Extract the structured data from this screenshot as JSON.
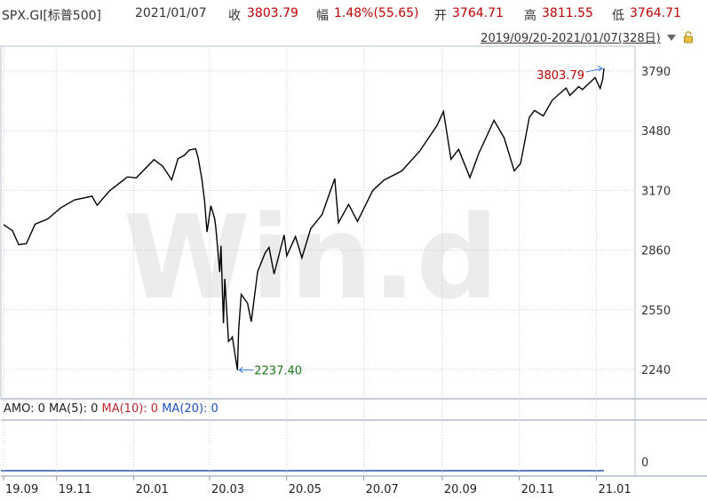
{
  "header": {
    "symbol": "SPX.GI[标普500]",
    "date": "2021/01/07",
    "close_label": "收",
    "close_value": "3803.79",
    "change_label": "幅",
    "change_value": "1.48%(55.65)",
    "open_label": "开",
    "open_value": "3764.71",
    "high_label": "高",
    "high_value": "3811.55",
    "low_label": "低",
    "low_value": "3764.71"
  },
  "range": {
    "text": "2019/09/20-2021/01/07(328日)",
    "dropdown_icon": "triangle-down-icon",
    "lock_icon": "lock-icon"
  },
  "watermark": "Win.d",
  "amo": {
    "amo_label": "AMO: 0",
    "ma5_label": "MA(5): 0",
    "ma10_label": "MA(10): 0",
    "ma20_label": "MA(20): 0",
    "colors": {
      "amo": "#222222",
      "ma5": "#222222",
      "ma10": "#c0282e",
      "ma20": "#1f4fbf"
    },
    "y_tick": "0"
  },
  "chart_data": {
    "type": "line",
    "title": "",
    "xlabel": "",
    "ylabel": "",
    "x_ticks": [
      "19.09",
      "19.11",
      "20.01",
      "20.03",
      "20.05",
      "20.07",
      "20.09",
      "20.11",
      "21.01"
    ],
    "y_ticks": [
      2240,
      2550,
      2860,
      3170,
      3480,
      3790
    ],
    "y_tick_labels": [
      "2240",
      "2550",
      "2860",
      "3170",
      "3480",
      "3790"
    ],
    "ylim": [
      2100,
      3950
    ],
    "grid": true,
    "annotations": [
      {
        "text": "3803.79",
        "x": "2021-01-07",
        "y": 3803.79,
        "color": "#c00000"
      },
      {
        "text": "2237.40",
        "x": "2020-03-23",
        "y": 2237.4,
        "color": "#1a7a1a"
      }
    ],
    "series": [
      {
        "color": "#000000",
        "points": [
          [
            "2019-09-20",
            2992
          ],
          [
            "2019-09-27",
            2961
          ],
          [
            "2019-10-02",
            2888
          ],
          [
            "2019-10-08",
            2893
          ],
          [
            "2019-10-15",
            2995
          ],
          [
            "2019-10-25",
            3022
          ],
          [
            "2019-11-04",
            3078
          ],
          [
            "2019-11-15",
            3120
          ],
          [
            "2019-11-29",
            3140
          ],
          [
            "2019-12-03",
            3093
          ],
          [
            "2019-12-13",
            3168
          ],
          [
            "2019-12-27",
            3240
          ],
          [
            "2020-01-03",
            3235
          ],
          [
            "2020-01-17",
            3330
          ],
          [
            "2020-01-24",
            3295
          ],
          [
            "2020-01-31",
            3225
          ],
          [
            "2020-02-05",
            3334
          ],
          [
            "2020-02-10",
            3352
          ],
          [
            "2020-02-14",
            3380
          ],
          [
            "2020-02-19",
            3386
          ],
          [
            "2020-02-21",
            3337
          ],
          [
            "2020-02-24",
            3225
          ],
          [
            "2020-02-26",
            3116
          ],
          [
            "2020-02-28",
            2954
          ],
          [
            "2020-03-02",
            3090
          ],
          [
            "2020-03-05",
            3023
          ],
          [
            "2020-03-06",
            2972
          ],
          [
            "2020-03-09",
            2746
          ],
          [
            "2020-03-10",
            2882
          ],
          [
            "2020-03-12",
            2480
          ],
          [
            "2020-03-13",
            2711
          ],
          [
            "2020-03-16",
            2386
          ],
          [
            "2020-03-18",
            2398
          ],
          [
            "2020-03-19",
            2409
          ],
          [
            "2020-03-23",
            2237
          ],
          [
            "2020-03-24",
            2447
          ],
          [
            "2020-03-26",
            2630
          ],
          [
            "2020-03-31",
            2584
          ],
          [
            "2020-04-03",
            2488
          ],
          [
            "2020-04-08",
            2749
          ],
          [
            "2020-04-14",
            2846
          ],
          [
            "2020-04-17",
            2874
          ],
          [
            "2020-04-21",
            2736
          ],
          [
            "2020-04-29",
            2939
          ],
          [
            "2020-05-01",
            2830
          ],
          [
            "2020-05-08",
            2930
          ],
          [
            "2020-05-13",
            2820
          ],
          [
            "2020-05-20",
            2971
          ],
          [
            "2020-05-29",
            3044
          ],
          [
            "2020-06-08",
            3232
          ],
          [
            "2020-06-11",
            3002
          ],
          [
            "2020-06-19",
            3097
          ],
          [
            "2020-06-26",
            3009
          ],
          [
            "2020-07-08",
            3169
          ],
          [
            "2020-07-17",
            3224
          ],
          [
            "2020-07-31",
            3271
          ],
          [
            "2020-08-14",
            3372
          ],
          [
            "2020-08-28",
            3508
          ],
          [
            "2020-09-02",
            3580
          ],
          [
            "2020-09-08",
            3332
          ],
          [
            "2020-09-14",
            3383
          ],
          [
            "2020-09-23",
            3237
          ],
          [
            "2020-09-30",
            3363
          ],
          [
            "2020-10-12",
            3534
          ],
          [
            "2020-10-20",
            3443
          ],
          [
            "2020-10-28",
            3271
          ],
          [
            "2020-11-02",
            3310
          ],
          [
            "2020-11-09",
            3550
          ],
          [
            "2020-11-13",
            3585
          ],
          [
            "2020-11-20",
            3557
          ],
          [
            "2020-11-27",
            3638
          ],
          [
            "2020-12-08",
            3702
          ],
          [
            "2020-12-11",
            3663
          ],
          [
            "2020-12-18",
            3709
          ],
          [
            "2020-12-21",
            3694
          ],
          [
            "2020-12-31",
            3756
          ],
          [
            "2021-01-04",
            3700
          ],
          [
            "2021-01-06",
            3748
          ],
          [
            "2021-01-07",
            3803.79
          ]
        ]
      }
    ]
  }
}
